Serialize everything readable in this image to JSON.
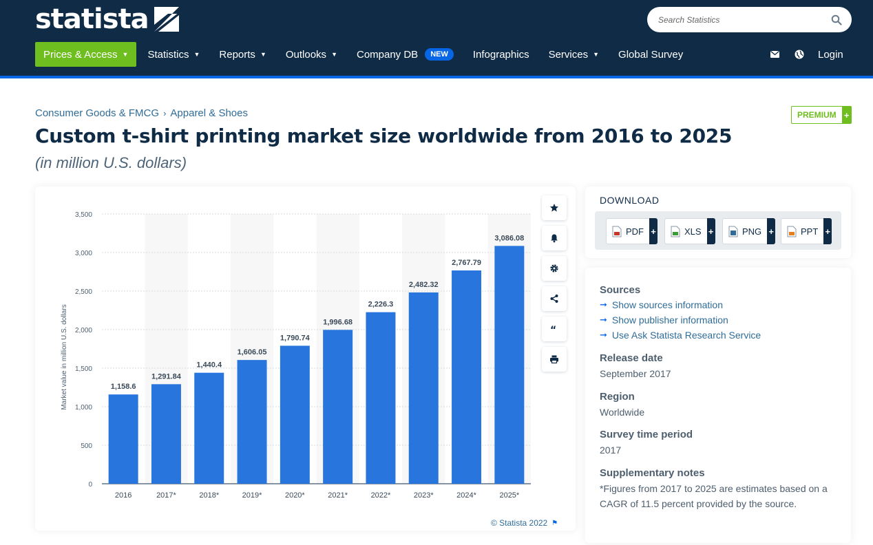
{
  "header": {
    "logo_text": "statista",
    "search_placeholder": "Search Statistics",
    "nav": [
      {
        "label": "Prices & Access",
        "has_caret": true
      },
      {
        "label": "Statistics",
        "has_caret": true
      },
      {
        "label": "Reports",
        "has_caret": true
      },
      {
        "label": "Outlooks",
        "has_caret": true
      },
      {
        "label": "Company DB",
        "badge": "NEW"
      },
      {
        "label": "Infographics"
      },
      {
        "label": "Services",
        "has_caret": true
      },
      {
        "label": "Global Survey"
      }
    ],
    "right_icons": [
      "mail-icon",
      "globe-icon"
    ],
    "login_label": "Login"
  },
  "breadcrumb": [
    "Consumer Goods & FMCG",
    "Apparel & Shoes"
  ],
  "premium_label": "PREMIUM",
  "premium_plus": "+",
  "title": "Custom t-shirt printing market size worldwide from 2016 to 2025",
  "subtitle": "(in million U.S. dollars)",
  "chart_tools": [
    "star-icon",
    "bell-icon",
    "gear-icon",
    "share-icon",
    "quote-icon",
    "print-icon"
  ],
  "copyright": "© Statista 2022",
  "chart_data": {
    "type": "bar",
    "categories": [
      "2016",
      "2017*",
      "2018*",
      "2019*",
      "2020*",
      "2021*",
      "2022*",
      "2023*",
      "2024*",
      "2025*"
    ],
    "values": [
      1158.6,
      1291.84,
      1440.4,
      1606.05,
      1790.74,
      1996.68,
      2226.3,
      2482.32,
      2767.79,
      3086.08
    ],
    "value_labels": [
      "1,158.6",
      "1,291.84",
      "1,440.4",
      "1,606.05",
      "1,790.74",
      "1,996.68",
      "2,226.3",
      "2,482.32",
      "2,767.79",
      "3,086.08"
    ],
    "ylabel": "Market value in million U.S. dollars",
    "yticks": [
      "0",
      "500",
      "1,000",
      "1,500",
      "2,000",
      "2,500",
      "3,000",
      "3,500"
    ],
    "ylim": [
      0,
      3500
    ],
    "grid": true,
    "color": "#2876dd"
  },
  "download": {
    "title": "DOWNLOAD",
    "buttons": [
      {
        "label": "PDF",
        "icon": "pdf-file-icon",
        "color": "#c0392b"
      },
      {
        "label": "XLS",
        "icon": "xls-file-icon",
        "color": "#3b9b35"
      },
      {
        "label": "PNG",
        "icon": "png-file-icon",
        "color": "#2f6c98"
      },
      {
        "label": "PPT",
        "icon": "ppt-file-icon",
        "color": "#e67e22"
      }
    ],
    "plus": "+"
  },
  "info": {
    "sources_title": "Sources",
    "links": [
      "Show sources information",
      "Show publisher information",
      "Use Ask Statista Research Service"
    ],
    "release_title": "Release date",
    "release_value": "September 2017",
    "region_title": "Region",
    "region_value": "Worldwide",
    "survey_title": "Survey time period",
    "survey_value": "2017",
    "notes_title": "Supplementary notes",
    "notes_value": "*Figures from 2017 to 2025 are estimates based on a CAGR of 11.5 percent provided by the source."
  }
}
